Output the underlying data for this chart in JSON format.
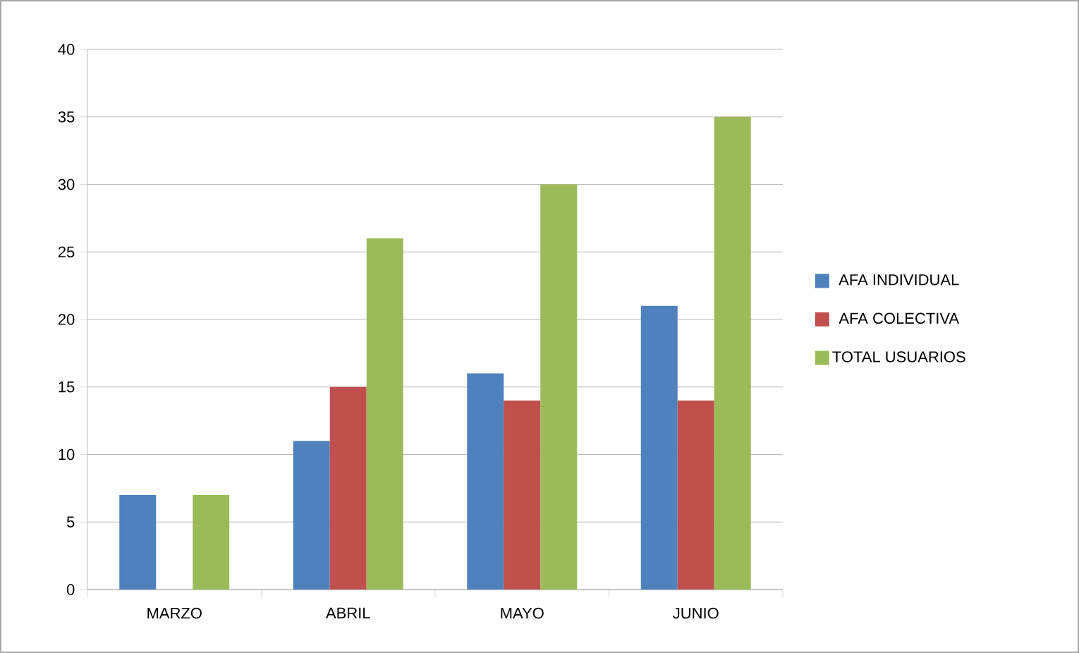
{
  "chart_data": {
    "type": "bar",
    "categories": [
      "MARZO",
      "ABRIL",
      "MAYO",
      "JUNIO"
    ],
    "series": [
      {
        "name": "AFA INDIVIDUAL",
        "color": "#4f81bd",
        "values": [
          7,
          11,
          16,
          21
        ]
      },
      {
        "name": "AFA COLECTIVA",
        "color": "#c0504d",
        "values": [
          null,
          15,
          14,
          14
        ]
      },
      {
        "name": "TOTAL USUARIOS",
        "color": "#9bbb59",
        "values": [
          7,
          26,
          30,
          35
        ]
      }
    ],
    "ylim": [
      0,
      40
    ],
    "yticks": [
      0,
      5,
      10,
      15,
      20,
      25,
      30,
      35,
      40
    ],
    "grid": "y",
    "legend": "right"
  }
}
